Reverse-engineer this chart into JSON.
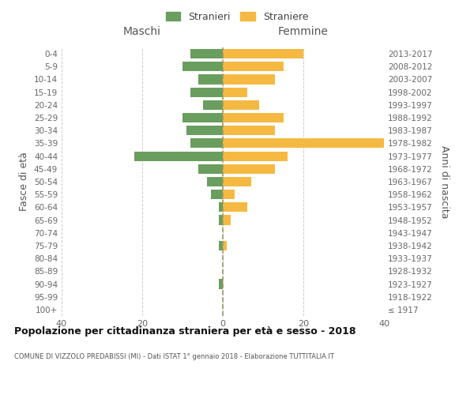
{
  "age_groups": [
    "100+",
    "95-99",
    "90-94",
    "85-89",
    "80-84",
    "75-79",
    "70-74",
    "65-69",
    "60-64",
    "55-59",
    "50-54",
    "45-49",
    "40-44",
    "35-39",
    "30-34",
    "25-29",
    "20-24",
    "15-19",
    "10-14",
    "5-9",
    "0-4"
  ],
  "birth_years": [
    "≤ 1917",
    "1918-1922",
    "1923-1927",
    "1928-1932",
    "1933-1937",
    "1938-1942",
    "1943-1947",
    "1948-1952",
    "1953-1957",
    "1958-1962",
    "1963-1967",
    "1968-1972",
    "1973-1977",
    "1978-1982",
    "1983-1987",
    "1988-1992",
    "1993-1997",
    "1998-2002",
    "2003-2007",
    "2008-2012",
    "2013-2017"
  ],
  "males": [
    0,
    0,
    1,
    0,
    0,
    1,
    0,
    1,
    1,
    3,
    4,
    6,
    22,
    8,
    9,
    10,
    5,
    8,
    6,
    10,
    8
  ],
  "females": [
    0,
    0,
    0,
    0,
    0,
    1,
    0,
    2,
    6,
    3,
    7,
    13,
    16,
    40,
    13,
    15,
    9,
    6,
    13,
    15,
    20
  ],
  "male_color": "#6a9e5f",
  "female_color": "#f5b942",
  "background_color": "#ffffff",
  "grid_color": "#cccccc",
  "center_line_color": "#999966",
  "xlim": 40,
  "title": "Popolazione per cittadinanza straniera per età e sesso - 2018",
  "subtitle": "COMUNE DI VIZZOLO PREDABISSI (MI) - Dati ISTAT 1° gennaio 2018 - Elaborazione TUTTITALIA.IT",
  "left_label": "Maschi",
  "right_label": "Femmine",
  "y_left_label": "Fasce di età",
  "y_right_label": "Anni di nascita",
  "legend_male": "Stranieri",
  "legend_female": "Straniere"
}
